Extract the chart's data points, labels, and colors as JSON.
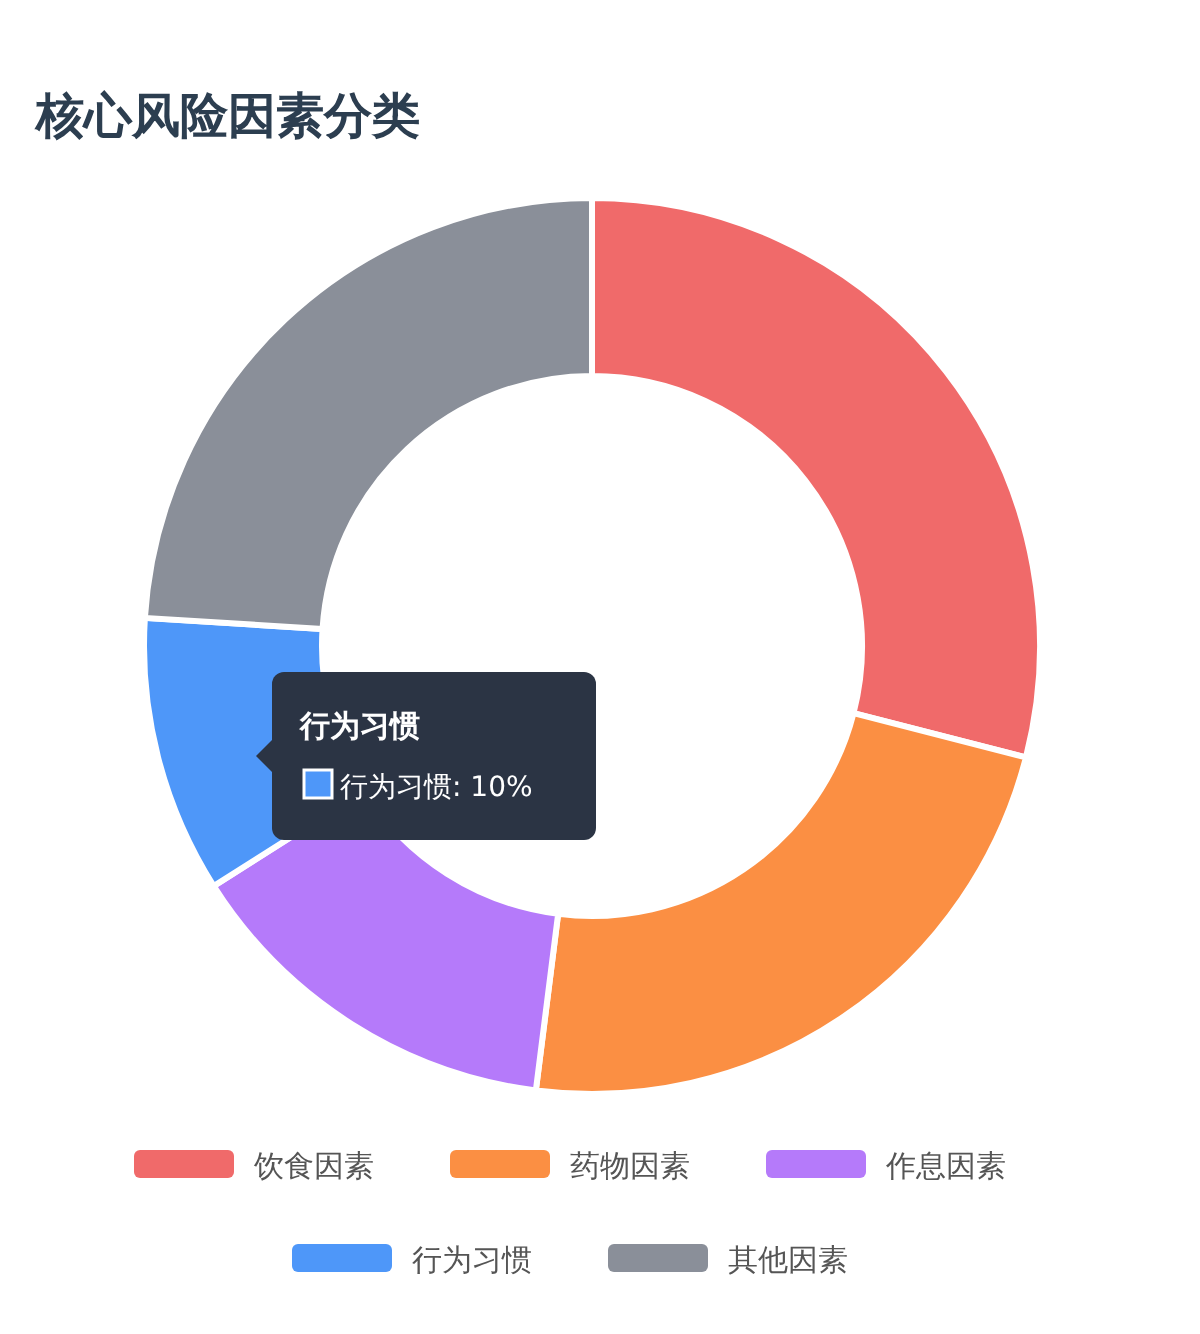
{
  "chart_data": {
    "type": "donut",
    "title": "核心风险因素分类",
    "categories": [
      "饮食因素",
      "药物因素",
      "作息因素",
      "行为习惯",
      "其他因素"
    ],
    "values": [
      29,
      23,
      14,
      10,
      24
    ],
    "colors": [
      "#f06a6a",
      "#fb8f43",
      "#b57afa",
      "#4e97f9",
      "#8a8f99"
    ],
    "legend": "bottom",
    "annotations": [
      "行为习惯",
      "行为习惯: 10%"
    ]
  }
}
